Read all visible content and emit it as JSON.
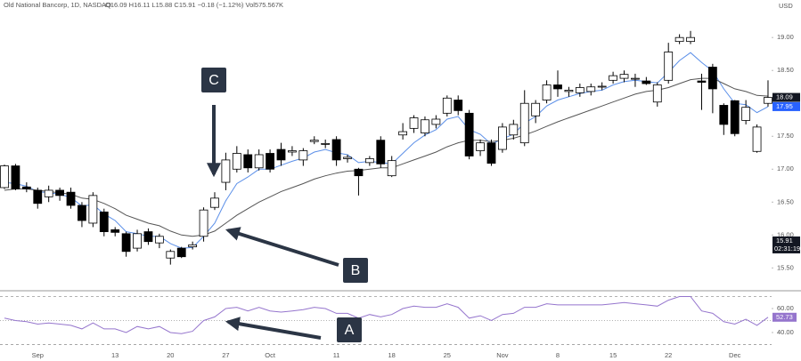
{
  "chart_data": {
    "type": "candlestick",
    "symbol": "Old National Bancorp, 1D, NASDAQ",
    "ohlc_text": "O16.09 H16.11 L15.88 C15.91 −0.18 (−1.12%) Vol575.567K",
    "currency": "USD",
    "categories": [
      null,
      null,
      null,
      "Sep",
      null,
      null,
      null,
      null,
      null,
      null,
      "13",
      null,
      null,
      null,
      null,
      "20",
      null,
      null,
      null,
      null,
      "27",
      null,
      null,
      null,
      "Oct",
      null,
      null,
      null,
      null,
      null,
      "11",
      null,
      null,
      null,
      null,
      "18",
      null,
      null,
      null,
      null,
      "25",
      null,
      null,
      null,
      null,
      "Nov",
      null,
      null,
      null,
      null,
      "8",
      null,
      null,
      null,
      null,
      "15",
      null,
      null,
      null,
      null,
      "22",
      null,
      null,
      null,
      null,
      null,
      "Dec",
      null,
      null,
      null
    ],
    "open": [
      16.72,
      17.05,
      16.73,
      16.68,
      16.58,
      16.68,
      16.65,
      16.45,
      16.18,
      16.35,
      16.08,
      16.02,
      15.8,
      16.05,
      15.88,
      15.65,
      15.8,
      15.82,
      15.98,
      16.42,
      16.8,
      17.0,
      17.22,
      17.02,
      17.24,
      17.3,
      17.26,
      17.14,
      17.42,
      17.38,
      17.45,
      17.16,
      17.0,
      17.1,
      17.44,
      16.9,
      17.52,
      17.62,
      17.55,
      17.68,
      17.85,
      18.05,
      17.85,
      17.28,
      17.4,
      17.3,
      17.52,
      17.4,
      17.81,
      18.05,
      18.28,
      18.18,
      18.16,
      18.18,
      18.25,
      18.35,
      18.38,
      18.38,
      18.34,
      18.02,
      18.35,
      18.94,
      18.94,
      18.34,
      18.55,
      17.97,
      18.04,
      17.74,
      17.27,
      18.0
    ],
    "high": [
      17.07,
      17.08,
      16.8,
      16.72,
      16.75,
      16.72,
      16.72,
      16.5,
      16.65,
      16.4,
      16.12,
      16.05,
      16.08,
      16.1,
      16.02,
      15.78,
      15.82,
      15.9,
      16.42,
      16.65,
      17.25,
      17.35,
      17.3,
      17.3,
      17.3,
      17.4,
      17.35,
      17.32,
      17.5,
      17.45,
      17.5,
      17.22,
      17.02,
      17.2,
      17.5,
      17.2,
      17.7,
      17.82,
      17.8,
      17.82,
      18.12,
      18.12,
      17.9,
      17.45,
      17.45,
      17.7,
      17.75,
      18.2,
      18.05,
      18.35,
      18.5,
      18.25,
      18.3,
      18.3,
      18.32,
      18.48,
      18.5,
      18.45,
      18.4,
      18.32,
      18.92,
      19.05,
      19.1,
      18.45,
      18.6,
      18.0,
      18.05,
      18.05,
      17.68,
      18.35
    ],
    "low": [
      16.7,
      16.68,
      16.65,
      16.4,
      16.5,
      16.52,
      16.4,
      16.12,
      16.12,
      15.98,
      15.98,
      15.67,
      15.75,
      15.85,
      15.8,
      15.55,
      15.65,
      15.78,
      15.9,
      16.38,
      16.68,
      16.95,
      16.95,
      16.98,
      16.95,
      17.05,
      17.2,
      17.05,
      17.38,
      17.32,
      17.05,
      17.1,
      16.6,
      17.05,
      17.02,
      16.88,
      17.45,
      17.55,
      17.5,
      17.62,
      17.8,
      17.82,
      17.15,
      17.2,
      17.05,
      17.25,
      17.45,
      17.35,
      17.7,
      18.0,
      18.1,
      18.1,
      18.1,
      18.12,
      18.2,
      18.3,
      18.32,
      18.25,
      18.28,
      17.95,
      18.3,
      18.9,
      18.9,
      17.9,
      17.85,
      17.52,
      17.5,
      17.68,
      17.25,
      17.95
    ],
    "close": [
      17.05,
      16.7,
      16.7,
      16.48,
      16.68,
      16.6,
      16.45,
      16.22,
      16.6,
      16.05,
      16.04,
      15.75,
      16.02,
      15.9,
      15.98,
      15.75,
      15.67,
      15.85,
      16.38,
      16.56,
      17.14,
      17.24,
      17.02,
      17.22,
      17.0,
      17.14,
      17.28,
      17.28,
      17.44,
      17.39,
      17.14,
      17.18,
      16.9,
      17.16,
      17.08,
      17.13,
      17.57,
      17.78,
      17.75,
      17.76,
      18.08,
      17.89,
      17.2,
      17.4,
      17.09,
      17.64,
      17.68,
      18.0,
      18.0,
      18.28,
      18.22,
      18.2,
      18.24,
      18.25,
      18.26,
      18.42,
      18.44,
      18.38,
      18.3,
      18.28,
      18.78,
      19.0,
      19.0,
      18.32,
      18.22,
      17.68,
      17.54,
      17.94,
      17.64,
      18.09
    ],
    "up_color": "#ffffff",
    "down_color": "#000000",
    "edge_color": "#000000",
    "ma_lines": [
      {
        "color": "#5b8fe8",
        "values": [
          16.8,
          16.78,
          16.74,
          16.66,
          16.64,
          16.62,
          16.57,
          16.44,
          16.46,
          16.32,
          16.22,
          16.05,
          16.02,
          15.98,
          15.98,
          15.87,
          15.8,
          15.81,
          15.98,
          16.18,
          16.52,
          16.78,
          16.88,
          17.0,
          17.0,
          17.06,
          17.12,
          17.17,
          17.26,
          17.3,
          17.25,
          17.22,
          17.1,
          17.12,
          17.1,
          17.08,
          17.24,
          17.4,
          17.52,
          17.6,
          17.76,
          17.8,
          17.6,
          17.53,
          17.38,
          17.46,
          17.53,
          17.7,
          17.8,
          17.96,
          18.05,
          18.1,
          18.15,
          18.18,
          18.2,
          18.28,
          18.33,
          18.35,
          18.33,
          18.31,
          18.47,
          18.65,
          18.77,
          18.62,
          18.49,
          18.22,
          18.0,
          17.98,
          17.86,
          17.95
        ]
      },
      {
        "color": "#555555",
        "values": [
          16.68,
          16.7,
          16.7,
          16.68,
          16.66,
          16.64,
          16.62,
          16.56,
          16.54,
          16.48,
          16.4,
          16.3,
          16.24,
          16.18,
          16.14,
          16.06,
          16.0,
          15.98,
          16.0,
          16.06,
          16.18,
          16.3,
          16.4,
          16.5,
          16.58,
          16.66,
          16.72,
          16.78,
          16.85,
          16.9,
          16.94,
          16.97,
          16.98,
          17.0,
          17.02,
          17.02,
          17.08,
          17.14,
          17.2,
          17.26,
          17.34,
          17.4,
          17.44,
          17.44,
          17.42,
          17.44,
          17.47,
          17.52,
          17.58,
          17.65,
          17.72,
          17.78,
          17.84,
          17.9,
          17.96,
          18.02,
          18.08,
          18.14,
          18.18,
          18.2,
          18.24,
          18.3,
          18.36,
          18.38,
          18.38,
          18.3,
          18.22,
          18.18,
          18.12,
          18.11
        ]
      }
    ],
    "ylim": [
      15.18,
      19.57
    ],
    "yticks": [
      {
        "value": 19,
        "label": "19.00"
      },
      {
        "value": 18.5,
        "label": "18.50"
      },
      {
        "value": 17.5,
        "label": "17.50"
      },
      {
        "value": 17,
        "label": "17.00"
      },
      {
        "value": 16.5,
        "label": "16.50"
      },
      {
        "value": 16,
        "label": "16.00"
      },
      {
        "value": 15.5,
        "label": "15.50"
      }
    ],
    "price_markers": [
      {
        "value": 18.11,
        "color": null
      },
      {
        "value": 18.09,
        "color": "#131722"
      },
      {
        "value": 17.95,
        "color": "#2962ff"
      },
      {
        "value": 15.91,
        "color": "#131722",
        "note": "02:31:19"
      }
    ],
    "rsi": {
      "color": "#9575cd",
      "values": [
        52,
        50,
        49,
        47,
        48,
        47,
        46,
        43,
        48,
        43,
        43,
        40,
        45,
        43,
        45,
        40,
        39,
        41,
        50,
        53,
        60,
        61,
        58,
        61,
        58,
        57,
        58,
        59,
        61,
        60,
        56,
        56,
        52,
        55,
        53,
        55,
        60,
        62,
        61,
        61,
        64,
        61,
        52,
        54,
        50,
        55,
        56,
        61,
        61,
        64,
        63,
        63,
        63,
        63,
        63,
        64,
        65,
        64,
        63,
        62,
        67,
        70,
        70,
        58,
        56,
        49,
        47,
        51,
        46,
        52.73
      ],
      "ylim": [
        24.4,
        72.6
      ],
      "yticks": [
        {
          "value": 60,
          "label": "60.00"
        },
        {
          "value": 40,
          "label": "40.00"
        }
      ],
      "levels": [
        70,
        50,
        30
      ],
      "last_label": "52.73"
    },
    "annotations": [
      "C",
      "B",
      "A"
    ]
  }
}
